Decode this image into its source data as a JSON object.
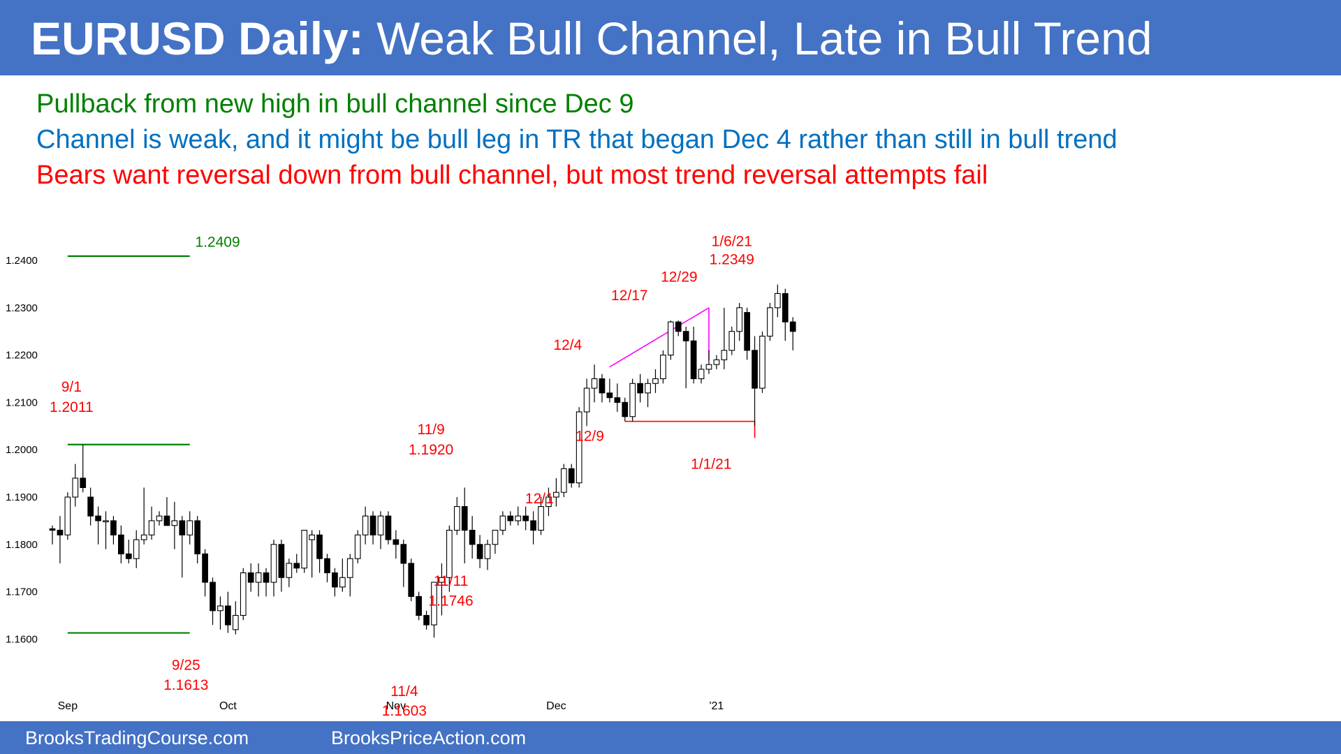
{
  "header": {
    "title_bold": "EURUSD Daily:",
    "title_rest": "Weak Bull Channel, Late in Bull Trend",
    "bg_color": "#4472C4"
  },
  "notes": [
    {
      "text": "Pullback from new high in bull channel since Dec 9",
      "color": "#008000"
    },
    {
      "text": "Channel is weak, and it might be bull leg in TR that began Dec 4 rather than still in bull trend",
      "color": "#0070C0"
    },
    {
      "text": "Bears want reversal down from bull channel, but most trend reversal attempts fail",
      "color": "#FF0000"
    }
  ],
  "footer": {
    "left": "BrooksTradingCourse.com",
    "right": "BrooksPriceAction.com"
  },
  "chart_data": {
    "type": "candlestick",
    "ylim": [
      1.155,
      1.2495
    ],
    "y_ticks": [
      "1.1600",
      "1.1700",
      "1.1800",
      "1.1900",
      "1.2000",
      "1.2100",
      "1.2200",
      "1.2300",
      "1.2400"
    ],
    "x_ticks": [
      {
        "label": "Sep",
        "bar": 2
      },
      {
        "label": "Oct",
        "bar": 23
      },
      {
        "label": "Nov",
        "bar": 45
      },
      {
        "label": "Dec",
        "bar": 66
      },
      {
        "label": "'21",
        "bar": 87
      }
    ],
    "colors": {
      "bull": "#ffffff",
      "bear": "#000000",
      "support": "#008000",
      "channel": "#FF00FF",
      "range": "#FF0000",
      "label": "#FF0000"
    },
    "bars": [
      [
        1.1833,
        1.184,
        1.18,
        1.183
      ],
      [
        1.183,
        1.186,
        1.176,
        1.182
      ],
      [
        1.182,
        1.191,
        1.181,
        1.19
      ],
      [
        1.19,
        1.197,
        1.188,
        1.194
      ],
      [
        1.194,
        1.2011,
        1.191,
        1.192
      ],
      [
        1.19,
        1.192,
        1.184,
        1.186
      ],
      [
        1.186,
        1.188,
        1.18,
        1.185
      ],
      [
        1.185,
        1.187,
        1.179,
        1.185
      ],
      [
        1.185,
        1.186,
        1.18,
        1.182
      ],
      [
        1.182,
        1.184,
        1.176,
        1.178
      ],
      [
        1.178,
        1.181,
        1.176,
        1.177
      ],
      [
        1.177,
        1.183,
        1.175,
        1.181
      ],
      [
        1.181,
        1.192,
        1.18,
        1.182
      ],
      [
        1.182,
        1.188,
        1.181,
        1.185
      ],
      [
        1.185,
        1.187,
        1.184,
        1.186
      ],
      [
        1.186,
        1.19,
        1.184,
        1.184
      ],
      [
        1.184,
        1.189,
        1.179,
        1.185
      ],
      [
        1.185,
        1.186,
        1.173,
        1.182
      ],
      [
        1.182,
        1.187,
        1.18,
        1.185
      ],
      [
        1.185,
        1.186,
        1.176,
        1.178
      ],
      [
        1.178,
        1.179,
        1.169,
        1.172
      ],
      [
        1.172,
        1.173,
        1.163,
        1.166
      ],
      [
        1.166,
        1.169,
        1.162,
        1.167
      ],
      [
        1.167,
        1.17,
        1.1613,
        1.163
      ],
      [
        1.162,
        1.168,
        1.161,
        1.165
      ],
      [
        1.165,
        1.175,
        1.164,
        1.174
      ],
      [
        1.174,
        1.176,
        1.17,
        1.172
      ],
      [
        1.172,
        1.176,
        1.169,
        1.174
      ],
      [
        1.174,
        1.175,
        1.169,
        1.172
      ],
      [
        1.172,
        1.181,
        1.169,
        1.18
      ],
      [
        1.18,
        1.181,
        1.17,
        1.173
      ],
      [
        1.173,
        1.177,
        1.171,
        1.176
      ],
      [
        1.176,
        1.178,
        1.174,
        1.175
      ],
      [
        1.175,
        1.183,
        1.174,
        1.183
      ],
      [
        1.181,
        1.183,
        1.173,
        1.182
      ],
      [
        1.182,
        1.183,
        1.174,
        1.177
      ],
      [
        1.177,
        1.178,
        1.172,
        1.174
      ],
      [
        1.174,
        1.175,
        1.169,
        1.171
      ],
      [
        1.171,
        1.177,
        1.17,
        1.173
      ],
      [
        1.173,
        1.178,
        1.169,
        1.177
      ],
      [
        1.177,
        1.183,
        1.176,
        1.182
      ],
      [
        1.182,
        1.188,
        1.18,
        1.186
      ],
      [
        1.186,
        1.187,
        1.18,
        1.182
      ],
      [
        1.182,
        1.187,
        1.179,
        1.186
      ],
      [
        1.186,
        1.187,
        1.18,
        1.181
      ],
      [
        1.181,
        1.183,
        1.177,
        1.18
      ],
      [
        1.18,
        1.181,
        1.171,
        1.176
      ],
      [
        1.176,
        1.177,
        1.168,
        1.169
      ],
      [
        1.169,
        1.17,
        1.164,
        1.165
      ],
      [
        1.165,
        1.166,
        1.162,
        1.163
      ],
      [
        1.163,
        1.172,
        1.1603,
        1.172
      ],
      [
        1.172,
        1.176,
        1.165,
        1.173
      ],
      [
        1.173,
        1.184,
        1.17,
        1.183
      ],
      [
        1.183,
        1.19,
        1.182,
        1.188
      ],
      [
        1.188,
        1.192,
        1.176,
        1.183
      ],
      [
        1.183,
        1.186,
        1.177,
        1.18
      ],
      [
        1.18,
        1.182,
        1.175,
        1.177
      ],
      [
        1.177,
        1.181,
        1.1746,
        1.18
      ],
      [
        1.18,
        1.183,
        1.178,
        1.183
      ],
      [
        1.183,
        1.187,
        1.182,
        1.186
      ],
      [
        1.186,
        1.187,
        1.184,
        1.185
      ],
      [
        1.185,
        1.188,
        1.184,
        1.186
      ],
      [
        1.186,
        1.188,
        1.183,
        1.185
      ],
      [
        1.185,
        1.187,
        1.18,
        1.183
      ],
      [
        1.183,
        1.19,
        1.182,
        1.188
      ],
      [
        1.188,
        1.192,
        1.186,
        1.19
      ],
      [
        1.19,
        1.194,
        1.188,
        1.191
      ],
      [
        1.191,
        1.197,
        1.19,
        1.196
      ],
      [
        1.196,
        1.197,
        1.192,
        1.193
      ],
      [
        1.193,
        1.209,
        1.192,
        1.208
      ],
      [
        1.208,
        1.215,
        1.205,
        1.213
      ],
      [
        1.213,
        1.218,
        1.21,
        1.215
      ],
      [
        1.215,
        1.216,
        1.21,
        1.212
      ],
      [
        1.212,
        1.215,
        1.21,
        1.211
      ],
      [
        1.211,
        1.214,
        1.208,
        1.21
      ],
      [
        1.21,
        1.211,
        1.206,
        1.207
      ],
      [
        1.207,
        1.215,
        1.206,
        1.214
      ],
      [
        1.214,
        1.216,
        1.21,
        1.212
      ],
      [
        1.212,
        1.215,
        1.209,
        1.214
      ],
      [
        1.214,
        1.217,
        1.212,
        1.215
      ],
      [
        1.215,
        1.221,
        1.214,
        1.22
      ],
      [
        1.22,
        1.2273,
        1.219,
        1.227
      ],
      [
        1.227,
        1.2273,
        1.224,
        1.225
      ],
      [
        1.225,
        1.226,
        1.213,
        1.223
      ],
      [
        1.223,
        1.226,
        1.214,
        1.215
      ],
      [
        1.215,
        1.218,
        1.214,
        1.217
      ],
      [
        1.217,
        1.221,
        1.216,
        1.218
      ],
      [
        1.218,
        1.22,
        1.217,
        1.219
      ],
      [
        1.219,
        1.23,
        1.217,
        1.221
      ],
      [
        1.221,
        1.226,
        1.22,
        1.225
      ],
      [
        1.225,
        1.231,
        1.223,
        1.23
      ],
      [
        1.229,
        1.23,
        1.219,
        1.221
      ],
      [
        1.221,
        1.224,
        1.205,
        1.213
      ],
      [
        1.213,
        1.225,
        1.212,
        1.224
      ],
      [
        1.224,
        1.231,
        1.223,
        1.23
      ],
      [
        1.23,
        1.2349,
        1.228,
        1.233
      ],
      [
        1.233,
        1.234,
        1.223,
        1.227
      ],
      [
        1.227,
        1.228,
        1.221,
        1.225
      ]
    ],
    "lines": [
      {
        "kind": "support",
        "bar_from": 2,
        "bar_to": 18,
        "y": 1.2409
      },
      {
        "kind": "support",
        "bar_from": 2,
        "bar_to": 18,
        "y": 1.2011
      },
      {
        "kind": "support",
        "bar_from": 2,
        "bar_to": 18,
        "y": 1.1613
      },
      {
        "kind": "channel",
        "bar_from": 73,
        "y_from": 1.2175,
        "bar_to": 86,
        "y_to": 1.23
      },
      {
        "kind": "channel",
        "bar_from": 86,
        "y_from": 1.23,
        "bar_to": 86,
        "y_to": 1.219
      },
      {
        "kind": "range",
        "bar_from": 75,
        "y_from": 1.206,
        "bar_to": 92,
        "y_to": 1.206
      },
      {
        "kind": "range",
        "bar_from": 92,
        "y_from": 1.206,
        "bar_to": 92,
        "y_to": 1.2025
      }
    ],
    "annotations": [
      {
        "text": "1.2409",
        "color": "#008000",
        "x": 18.7,
        "y": 1.2429
      },
      {
        "text": "9/1",
        "color": "#FF0000",
        "x": 2.5,
        "y": 1.2123
      },
      {
        "text": "1.2011",
        "color": "#FF0000",
        "x": 2.5,
        "y": 1.208
      },
      {
        "text": "9/25",
        "color": "#FF0000",
        "x": 17.5,
        "y": 1.1535
      },
      {
        "text": "1.1613",
        "color": "#FF0000",
        "x": 17.5,
        "y": 1.1493
      },
      {
        "text": "11/9",
        "color": "#FF0000",
        "x": 49.6,
        "y": 1.2033
      },
      {
        "text": "1.1920",
        "color": "#FF0000",
        "x": 49.6,
        "y": 1.199
      },
      {
        "text": "11/4",
        "color": "#FF0000",
        "x": 46.1,
        "y": 1.148
      },
      {
        "text": "1.1603",
        "color": "#FF0000",
        "x": 46.1,
        "y": 1.1438
      },
      {
        "text": "11/11",
        "color": "#FF0000",
        "x": 52.2,
        "y": 1.1713
      },
      {
        "text": "1.1746",
        "color": "#FF0000",
        "x": 52.2,
        "y": 1.1671
      },
      {
        "text": "12/1",
        "color": "#FF0000",
        "x": 63.8,
        "y": 1.1887
      },
      {
        "text": "12/4",
        "color": "#FF0000",
        "x": 67.5,
        "y": 1.2211
      },
      {
        "text": "12/9",
        "color": "#FF0000",
        "x": 70.4,
        "y": 1.2019
      },
      {
        "text": "12/17",
        "color": "#FF0000",
        "x": 75.6,
        "y": 1.2316
      },
      {
        "text": "12/29",
        "color": "#FF0000",
        "x": 82.1,
        "y": 1.2355
      },
      {
        "text": "1/1/21",
        "color": "#FF0000",
        "x": 86.3,
        "y": 1.196
      },
      {
        "text": "1/6/21",
        "color": "#FF0000",
        "x": 89.0,
        "y": 1.243
      },
      {
        "text": "1.2349",
        "color": "#FF0000",
        "x": 89.0,
        "y": 1.2392
      }
    ]
  }
}
